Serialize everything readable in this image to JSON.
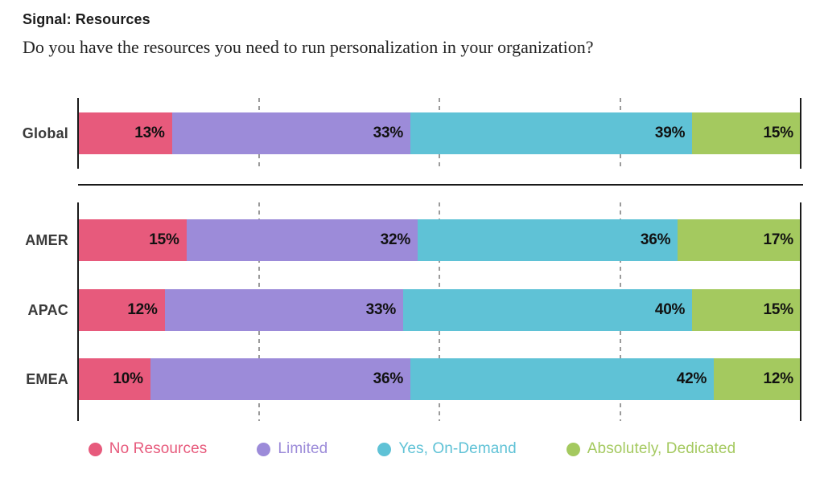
{
  "header": {
    "title": "Signal: Resources",
    "subtitle": "Do you have the resources you need to run personalization in your organization?"
  },
  "chart_data": {
    "type": "bar",
    "orientation": "horizontal",
    "stacked": true,
    "unit": "%",
    "xlim": [
      0,
      100
    ],
    "gridlines_pct": [
      25,
      50,
      75
    ],
    "grid": "dashed-vertical",
    "categories": [
      "No Resources",
      "Limited",
      "Yes, On-Demand",
      "Absolutely, Dedicated"
    ],
    "colors": [
      "#e75a7c",
      "#9c8bd9",
      "#5fc2d6",
      "#a4c95f"
    ],
    "sections": [
      {
        "groups": [
          {
            "label": "Global",
            "values": [
              13,
              33,
              39,
              15
            ]
          }
        ]
      },
      {
        "groups": [
          {
            "label": "AMER",
            "values": [
              15,
              32,
              36,
              17
            ]
          },
          {
            "label": "APAC",
            "values": [
              12,
              33,
              40,
              15
            ]
          },
          {
            "label": "EMEA",
            "values": [
              10,
              36,
              42,
              12
            ]
          }
        ]
      }
    ],
    "value_label_format": "{value}%",
    "legend_position": "bottom",
    "legend": [
      {
        "label": "No Resources",
        "color": "#e75a7c"
      },
      {
        "label": "Limited",
        "color": "#9c8bd9"
      },
      {
        "label": "Yes, On-Demand",
        "color": "#5fc2d6"
      },
      {
        "label": "Absolutely, Dedicated",
        "color": "#a4c95f"
      }
    ]
  }
}
